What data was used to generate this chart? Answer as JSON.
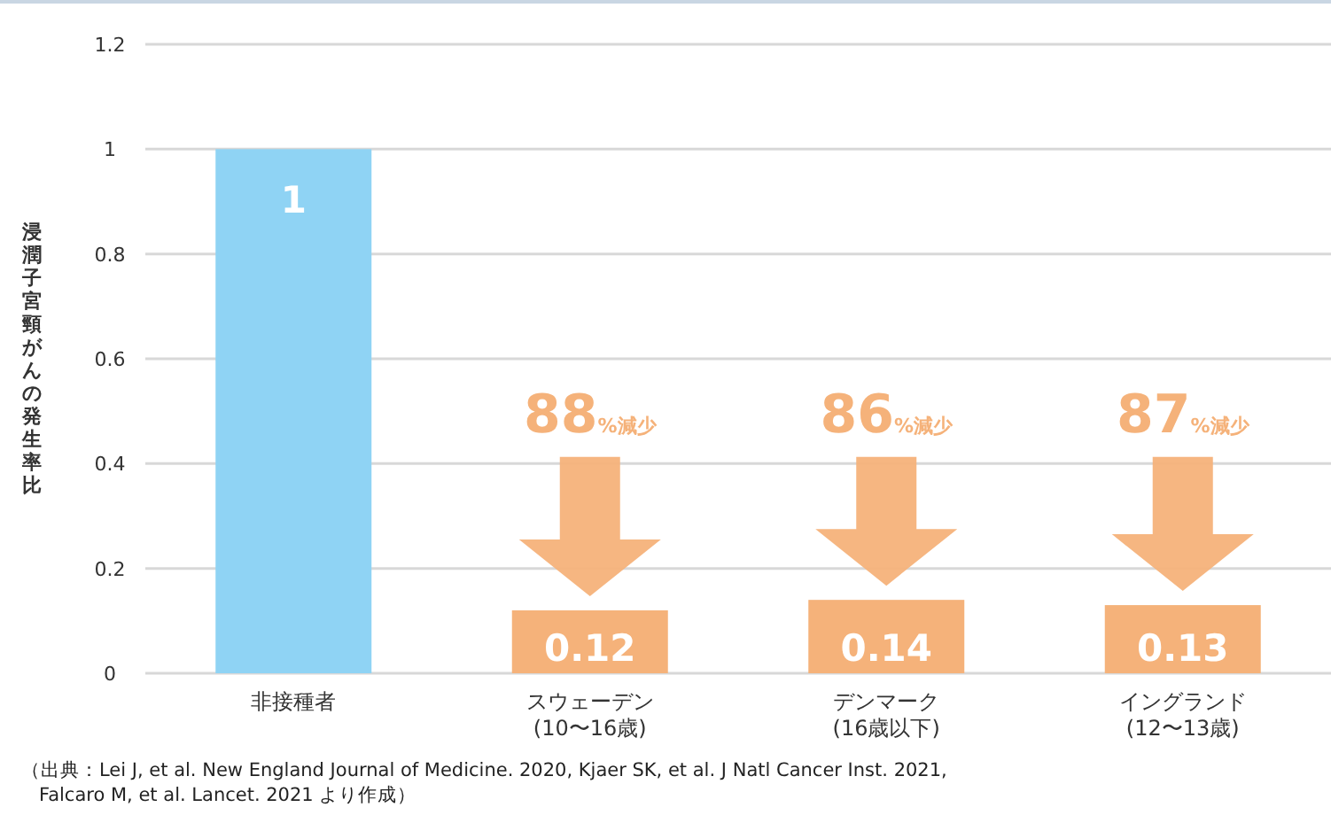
{
  "chart_data": {
    "type": "bar",
    "ylabel": "浸潤子宮頸がんの発生率比",
    "categories": [
      "非接種者",
      "スウェーデン\n(10〜16歳)",
      "デンマーク\n(16歳以下)",
      "イングランド\n(12〜13歳)"
    ],
    "values": [
      1,
      0.12,
      0.14,
      0.13
    ],
    "colors": [
      "#8fd3f4",
      "#f5b27a",
      "#f5b27a",
      "#f5b27a"
    ],
    "ylim": [
      0,
      1.2
    ],
    "yticks": [
      0,
      0.2,
      0.4,
      0.6,
      0.8,
      1,
      1.2
    ],
    "grid": "y",
    "data_labels": true,
    "annotations": [
      "88%減少",
      "86%減少",
      "87%減少",
      "（出典：Lei J, et al. New England Journal of Medicine. 2020, Kjaer SK, et al. J Natl Cancer Inst. 2021,\nFalcaro M, et al. Lancet. 2021 より作成）"
    ]
  }
}
